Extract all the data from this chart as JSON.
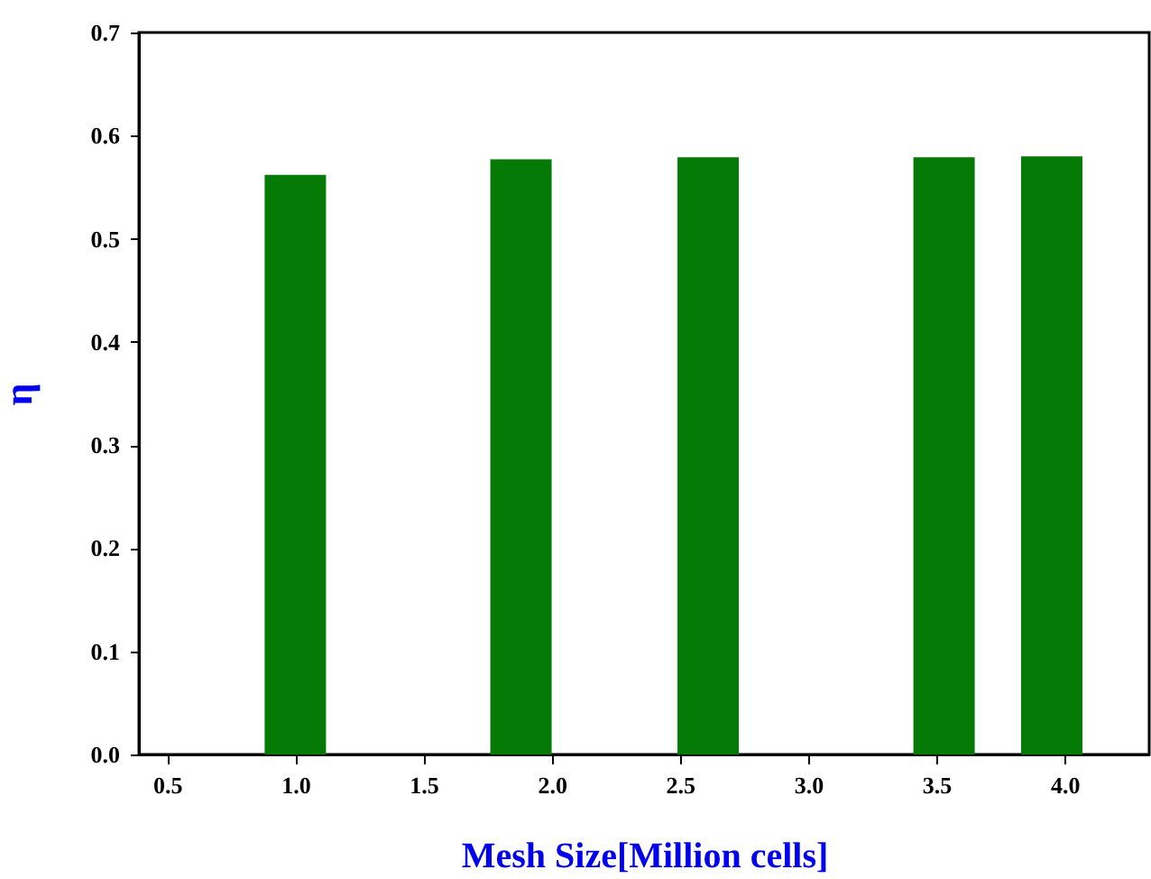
{
  "chart_data": {
    "type": "bar",
    "xlabel": "Mesh Size[Million cells]",
    "ylabel": "η",
    "x": [
      1.0,
      1.88,
      2.61,
      3.53,
      3.95
    ],
    "values": [
      0.562,
      0.577,
      0.579,
      0.579,
      0.58
    ],
    "color": "#067a06",
    "xlim": [
      0.39,
      4.33
    ],
    "xticks": [
      {
        "value": 0.5,
        "label": "0.5"
      },
      {
        "value": 1,
        "label": "1.0"
      },
      {
        "value": 1.5,
        "label": "1.5"
      },
      {
        "value": 2,
        "label": "2.0"
      },
      {
        "value": 2.5,
        "label": "2.5"
      },
      {
        "value": 3,
        "label": "3.0"
      },
      {
        "value": 3.5,
        "label": "3.5"
      },
      {
        "value": 4,
        "label": "4.0"
      }
    ],
    "ylim": [
      0,
      0.7
    ],
    "yticks": [
      {
        "value": 0,
        "label": "0.0"
      },
      {
        "value": 0.1,
        "label": "0.1"
      },
      {
        "value": 0.2,
        "label": "0.2"
      },
      {
        "value": 0.3,
        "label": "0.3"
      },
      {
        "value": 0.4,
        "label": "0.4"
      },
      {
        "value": 0.5,
        "label": "0.5"
      },
      {
        "value": 0.6,
        "label": "0.6"
      },
      {
        "value": 0.7,
        "label": "0.7"
      }
    ],
    "grid": false
  }
}
